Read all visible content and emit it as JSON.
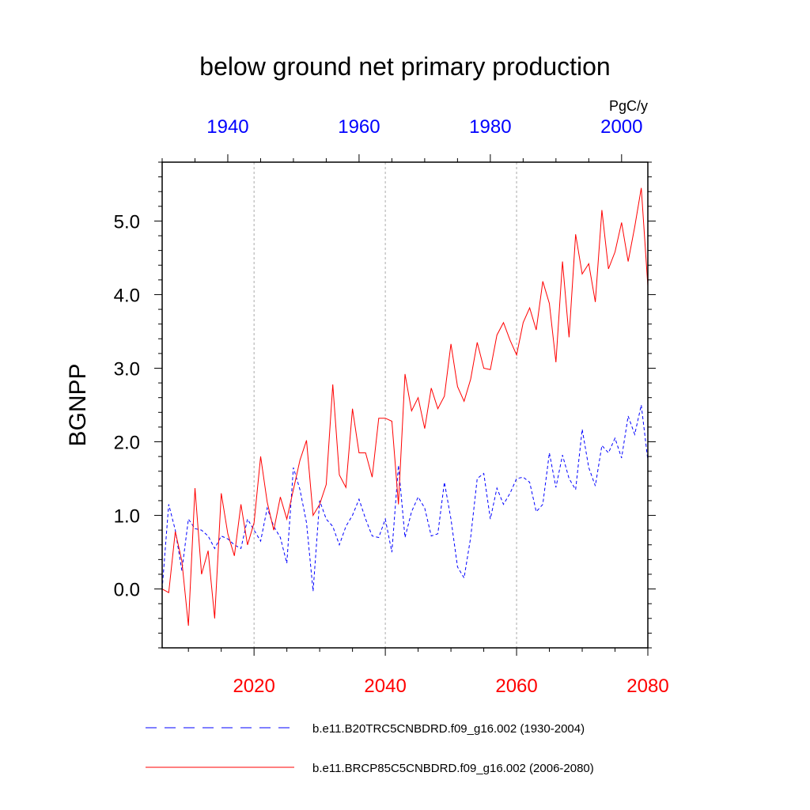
{
  "chart_data": {
    "type": "line",
    "title": "below ground net primary production",
    "ylabel": "BGNPP",
    "units": "PgC/y",
    "ylim": [
      -0.8,
      5.8
    ],
    "yticks": [
      0.0,
      1.0,
      2.0,
      3.0,
      4.0,
      5.0
    ],
    "ytick_labels": [
      "0.0",
      "1.0",
      "2.0",
      "3.0",
      "4.0",
      "5.0"
    ],
    "grid": "vertical dotted lines at bottom-axis major ticks",
    "bottom_axis": {
      "color": "#ff0000",
      "xlim": [
        2006,
        2080
      ],
      "ticks": [
        2020,
        2040,
        2060,
        2080
      ],
      "tick_labels": [
        "2020",
        "2040",
        "2060",
        "2080"
      ]
    },
    "top_axis": {
      "color": "#0000ff",
      "xlim": [
        1930,
        2004
      ],
      "ticks": [
        1940,
        1960,
        1980,
        2000
      ],
      "tick_labels": [
        "1940",
        "1960",
        "1980",
        "2000"
      ]
    },
    "legend_position": "bottom",
    "series": [
      {
        "name": "b.e11.B20TRC5CNBDRD.f09_g16.002 (1930-2004)",
        "color": "#0000ff",
        "dash": "dashed",
        "axis": "top",
        "x_start": 1930,
        "values": [
          0.0,
          1.15,
          0.8,
          0.25,
          0.95,
          0.82,
          0.8,
          0.72,
          0.55,
          0.72,
          0.68,
          0.6,
          0.55,
          0.95,
          0.8,
          0.65,
          1.1,
          0.85,
          0.7,
          0.35,
          1.65,
          1.35,
          0.9,
          -0.03,
          1.2,
          0.95,
          0.85,
          0.6,
          0.85,
          1.0,
          1.22,
          0.95,
          0.72,
          0.7,
          0.95,
          0.5,
          1.68,
          0.7,
          1.05,
          1.25,
          1.1,
          0.72,
          0.75,
          1.45,
          0.95,
          0.3,
          0.15,
          0.7,
          1.5,
          1.57,
          0.95,
          1.37,
          1.15,
          1.3,
          1.5,
          1.52,
          1.45,
          1.05,
          1.15,
          1.85,
          1.38,
          1.82,
          1.5,
          1.35,
          2.17,
          1.65,
          1.4,
          1.95,
          1.85,
          2.05,
          1.78,
          2.35,
          2.1,
          2.5,
          1.75
        ]
      },
      {
        "name": "b.e11.BRCP85C5CNBDRD.f09_g16.002 (2006-2080)",
        "color": "#ff0000",
        "dash": "solid",
        "axis": "bottom",
        "x_start": 2006,
        "values": [
          0.0,
          -0.05,
          0.78,
          0.38,
          -0.5,
          1.37,
          0.2,
          0.52,
          -0.4,
          1.3,
          0.75,
          0.45,
          1.15,
          0.6,
          0.9,
          1.8,
          1.18,
          0.8,
          1.25,
          0.95,
          1.35,
          1.75,
          2.02,
          1.0,
          1.15,
          1.42,
          2.78,
          1.55,
          1.38,
          2.45,
          1.85,
          1.85,
          1.52,
          2.32,
          2.32,
          2.28,
          1.15,
          2.92,
          2.42,
          2.6,
          2.18,
          2.73,
          2.45,
          2.62,
          3.33,
          2.75,
          2.55,
          2.85,
          3.35,
          3.0,
          2.98,
          3.45,
          3.62,
          3.38,
          3.18,
          3.62,
          3.82,
          3.52,
          4.18,
          3.88,
          3.08,
          4.45,
          3.42,
          4.82,
          4.28,
          4.42,
          3.9,
          5.15,
          4.35,
          4.58,
          4.98,
          4.45,
          4.92,
          5.45,
          4.12
        ]
      }
    ]
  }
}
